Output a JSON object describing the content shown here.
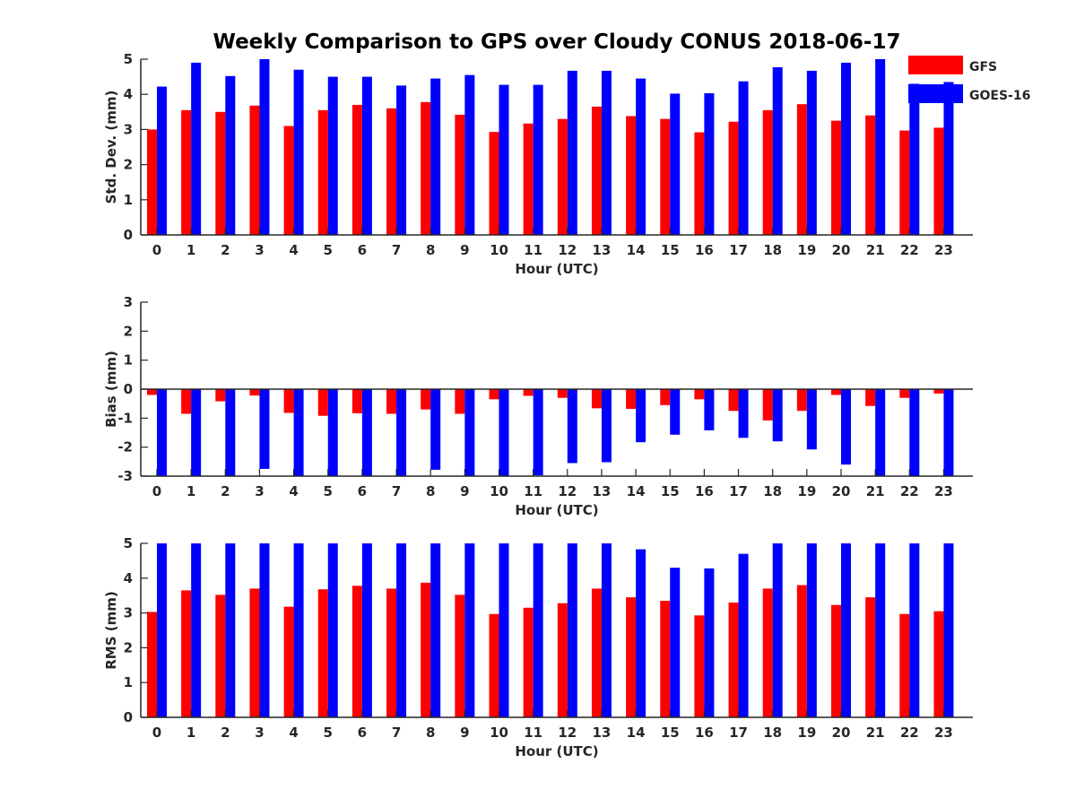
{
  "figure": {
    "title": "Weekly Comparison to GPS over Cloudy CONUS 2018-06-17"
  },
  "legend": {
    "placement": "top-right",
    "entries": [
      {
        "label": "GFS",
        "color": "#ff0000"
      },
      {
        "label": "GOES-16",
        "color": "#0000ff"
      }
    ]
  },
  "chart_data": [
    {
      "type": "bar",
      "title": "Weekly Comparison to GPS over Cloudy CONUS 2018-06-17",
      "xlabel": "Hour (UTC)",
      "ylabel": "Std. Dev. (mm)",
      "ylim": [
        0,
        5
      ],
      "yticks": [
        0,
        1,
        2,
        3,
        4,
        5
      ],
      "categories": [
        "0",
        "1",
        "2",
        "3",
        "4",
        "5",
        "6",
        "7",
        "8",
        "9",
        "10",
        "11",
        "12",
        "13",
        "14",
        "15",
        "16",
        "17",
        "18",
        "19",
        "20",
        "21",
        "22",
        "23"
      ],
      "series": [
        {
          "name": "GFS",
          "color": "#ff0000",
          "values": [
            3.0,
            3.55,
            3.5,
            3.68,
            3.1,
            3.55,
            3.7,
            3.6,
            3.78,
            3.42,
            2.93,
            3.17,
            3.3,
            3.65,
            3.38,
            3.3,
            2.92,
            3.22,
            3.55,
            3.72,
            3.25,
            3.4,
            2.97,
            3.05
          ]
        },
        {
          "name": "GOES-16",
          "color": "#0000ff",
          "values": [
            4.22,
            4.9,
            4.52,
            5.0,
            4.7,
            4.5,
            4.5,
            4.25,
            4.45,
            4.55,
            4.27,
            4.27,
            4.67,
            4.67,
            4.45,
            4.02,
            4.03,
            4.37,
            4.77,
            4.67,
            4.9,
            5.0,
            4.3,
            4.35
          ]
        }
      ],
      "grid": false
    },
    {
      "type": "bar",
      "xlabel": "Hour (UTC)",
      "ylabel": "Bias (mm)",
      "ylim": [
        -3,
        3
      ],
      "yticks": [
        -3,
        -2,
        -1,
        0,
        1,
        2,
        3
      ],
      "categories": [
        "0",
        "1",
        "2",
        "3",
        "4",
        "5",
        "6",
        "7",
        "8",
        "9",
        "10",
        "11",
        "12",
        "13",
        "14",
        "15",
        "16",
        "17",
        "18",
        "19",
        "20",
        "21",
        "22",
        "23"
      ],
      "series": [
        {
          "name": "GFS",
          "color": "#ff0000",
          "values": [
            -0.2,
            -0.85,
            -0.42,
            -0.22,
            -0.82,
            -0.92,
            -0.83,
            -0.85,
            -0.7,
            -0.85,
            -0.35,
            -0.23,
            -0.3,
            -0.66,
            -0.68,
            -0.55,
            -0.35,
            -0.75,
            -1.08,
            -0.75,
            -0.2,
            -0.58,
            -0.3,
            -0.15
          ]
        },
        {
          "name": "GOES-16",
          "color": "#0000ff",
          "values": [
            -3.0,
            -3.0,
            -3.0,
            -2.75,
            -3.0,
            -3.0,
            -3.0,
            -3.0,
            -2.78,
            -3.0,
            -3.0,
            -2.97,
            -2.55,
            -2.52,
            -1.83,
            -1.57,
            -1.42,
            -1.68,
            -1.8,
            -2.08,
            -2.6,
            -3.0,
            -3.0,
            -3.0
          ]
        }
      ],
      "grid": false
    },
    {
      "type": "bar",
      "xlabel": "Hour (UTC)",
      "ylabel": "RMS (mm)",
      "ylim": [
        0,
        5
      ],
      "yticks": [
        0,
        1,
        2,
        3,
        4,
        5
      ],
      "categories": [
        "0",
        "1",
        "2",
        "3",
        "4",
        "5",
        "6",
        "7",
        "8",
        "9",
        "10",
        "11",
        "12",
        "13",
        "14",
        "15",
        "16",
        "17",
        "18",
        "19",
        "20",
        "21",
        "22",
        "23"
      ],
      "series": [
        {
          "name": "GFS",
          "color": "#ff0000",
          "values": [
            3.03,
            3.65,
            3.52,
            3.7,
            3.18,
            3.68,
            3.78,
            3.7,
            3.87,
            3.52,
            2.97,
            3.15,
            3.28,
            3.7,
            3.45,
            3.35,
            2.93,
            3.3,
            3.7,
            3.8,
            3.23,
            3.45,
            2.97,
            3.05
          ]
        },
        {
          "name": "GOES-16",
          "color": "#0000ff",
          "values": [
            5.0,
            5.0,
            5.0,
            5.0,
            5.0,
            5.0,
            5.0,
            5.0,
            5.0,
            5.0,
            5.0,
            5.0,
            5.0,
            5.0,
            4.83,
            4.3,
            4.28,
            4.7,
            5.0,
            5.0,
            5.0,
            5.0,
            5.0,
            5.0
          ]
        }
      ],
      "grid": false
    }
  ]
}
